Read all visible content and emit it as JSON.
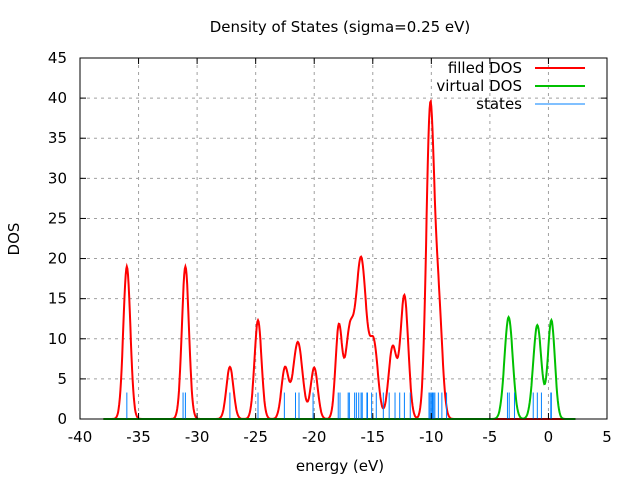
{
  "chart_data": {
    "type": "line",
    "title": "Density of States (sigma=0.25 eV)",
    "xlabel": "energy (eV)",
    "ylabel": "DOS",
    "xlim": [
      -40,
      5
    ],
    "ylim": [
      0,
      45
    ],
    "xticks": [
      -40,
      -35,
      -30,
      -25,
      -20,
      -15,
      -10,
      -5,
      0,
      5
    ],
    "yticks": [
      0,
      5,
      10,
      15,
      20,
      25,
      30,
      35,
      40,
      45
    ],
    "grid": true,
    "legend_position": "top-right",
    "series": [
      {
        "name": "filled DOS",
        "color": "#ff0000",
        "range": [
          -38,
          2.3
        ],
        "peaks": [
          [
            -36.0,
            19,
            0.3
          ],
          [
            -31.0,
            19,
            0.3
          ],
          [
            -27.2,
            6.5,
            0.3
          ],
          [
            -24.8,
            12.3,
            0.3
          ],
          [
            -22.5,
            6.3,
            0.3
          ],
          [
            -21.4,
            9.6,
            0.4
          ],
          [
            -20.0,
            6.4,
            0.3
          ],
          [
            -17.9,
            11.5,
            0.28
          ],
          [
            -17.0,
            10,
            0.35
          ],
          [
            -16.0,
            20,
            0.45
          ],
          [
            -14.9,
            9,
            0.35
          ],
          [
            -13.3,
            9,
            0.35
          ],
          [
            -12.3,
            15.3,
            0.33
          ],
          [
            -10.1,
            38,
            0.33
          ],
          [
            -9.4,
            14,
            0.33
          ]
        ]
      },
      {
        "name": "virtual DOS",
        "color": "#00c000",
        "range": [
          -38,
          2.3
        ],
        "peaks": [
          [
            -3.4,
            12.7,
            0.35
          ],
          [
            -0.95,
            11.7,
            0.35
          ],
          [
            0.25,
            12.3,
            0.3
          ]
        ]
      },
      {
        "name": "states",
        "color": "#0080ff",
        "height": 3.3,
        "x": [
          -36.0,
          -31.2,
          -31.0,
          -27.2,
          -24.8,
          -22.55,
          -21.6,
          -21.3,
          -20.1,
          -17.95,
          -17.8,
          -17.1,
          -17.0,
          -16.55,
          -16.4,
          -16.2,
          -16.0,
          -15.9,
          -15.5,
          -15.45,
          -15.1,
          -14.7,
          -14.1,
          -13.6,
          -13.1,
          -12.7,
          -12.3,
          -11.8,
          -10.2,
          -10.1,
          -10.0,
          -9.9,
          -9.8,
          -9.7,
          -9.4,
          -9.1,
          -8.7,
          -3.5,
          -3.35,
          -2.9,
          -1.3,
          -0.95,
          -0.6,
          0.2,
          0.25
        ]
      }
    ]
  }
}
